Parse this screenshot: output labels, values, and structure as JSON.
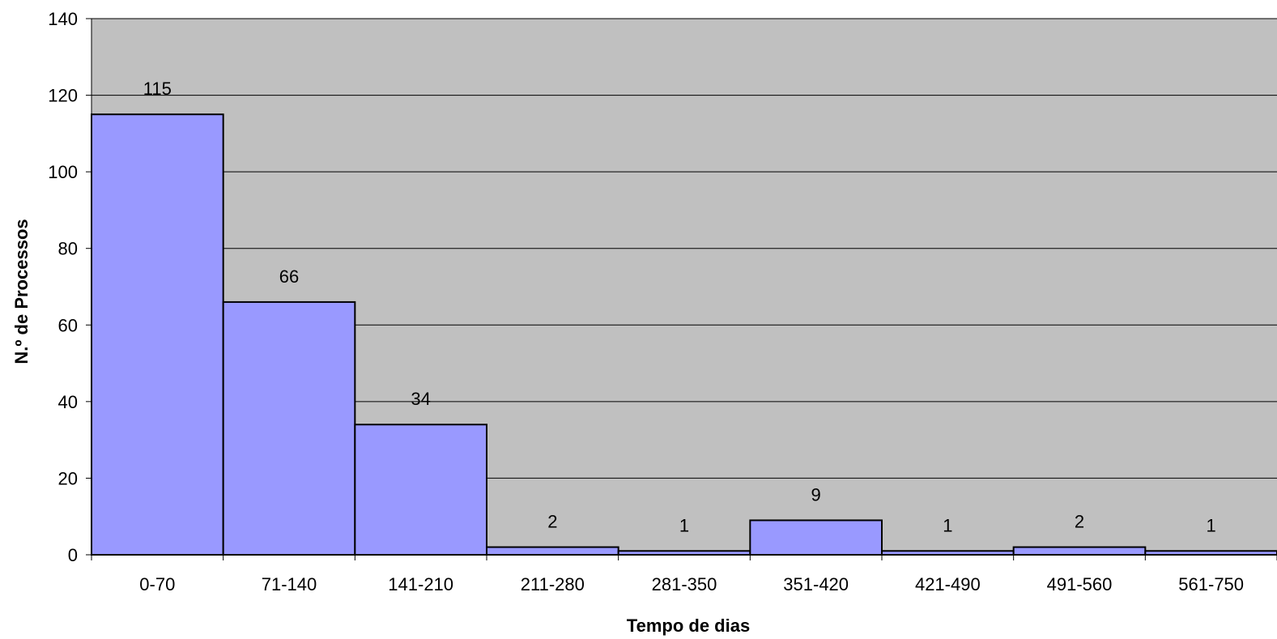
{
  "chart_data": {
    "type": "bar",
    "title": "",
    "xlabel": "Tempo de dias",
    "ylabel": "N.º de Processos",
    "categories": [
      "0-70",
      "71-140",
      "141-210",
      "211-280",
      "281-350",
      "351-420",
      "421-490",
      "491-560",
      "561-750"
    ],
    "values": [
      115,
      66,
      34,
      2,
      1,
      9,
      1,
      2,
      1
    ],
    "data_labels": [
      "115",
      "66",
      "34",
      "2",
      "1",
      "9",
      "1",
      "2",
      "1"
    ],
    "ylim": [
      0,
      140
    ],
    "yticks": [
      "0",
      "20",
      "40",
      "60",
      "80",
      "100",
      "120",
      "140"
    ],
    "grid": true,
    "legend": "none",
    "colors": {
      "plot_background": "#c0c0c0",
      "bar_fill": "#9999ff",
      "bar_stroke": "#000000",
      "gridline": "#000000"
    }
  }
}
